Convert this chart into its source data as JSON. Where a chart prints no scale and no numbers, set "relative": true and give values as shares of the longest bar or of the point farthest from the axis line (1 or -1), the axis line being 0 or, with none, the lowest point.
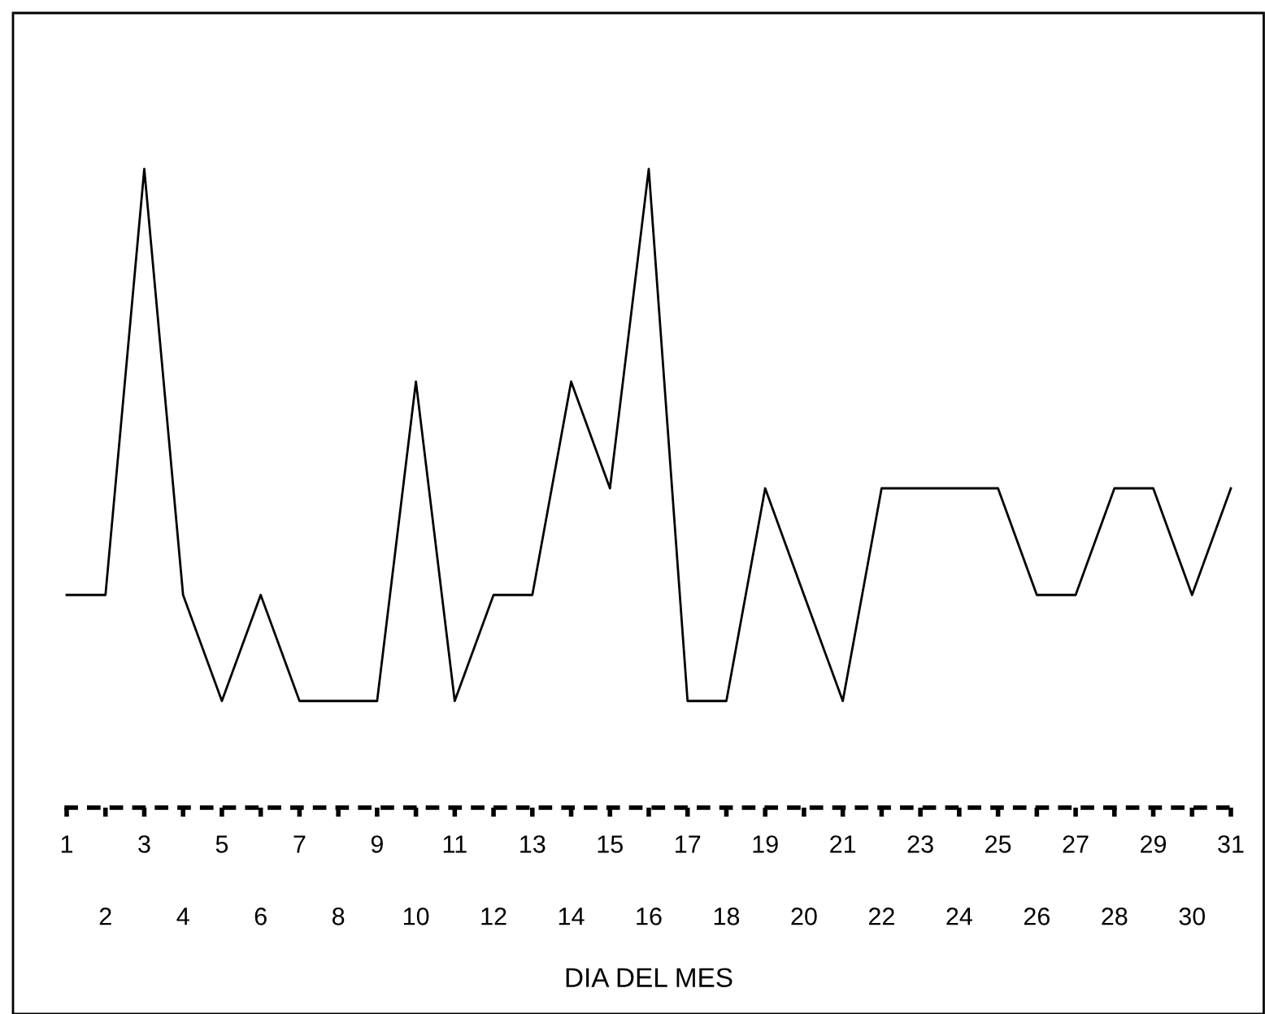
{
  "chart_data": {
    "type": "line",
    "xlabel": "DIA DEL MES",
    "relative": true,
    "categories": [
      "1",
      "2",
      "3",
      "4",
      "5",
      "6",
      "7",
      "8",
      "9",
      "10",
      "11",
      "12",
      "13",
      "14",
      "15",
      "16",
      "17",
      "18",
      "19",
      "20",
      "21",
      "22",
      "23",
      "24",
      "25",
      "26",
      "27",
      "28",
      "29",
      "30",
      "31"
    ],
    "series": [
      {
        "color": "#000000",
        "values": [
          0.333,
          0.333,
          1,
          0.333,
          0.167,
          0.333,
          0.167,
          0.167,
          0.167,
          0.667,
          0.167,
          0.333,
          0.333,
          0.667,
          0.5,
          1,
          0.167,
          0.167,
          0.5,
          0.333,
          0.167,
          0.5,
          0.5,
          0.5,
          0.5,
          0.333,
          0.333,
          0.5,
          0.5,
          0.333,
          0.5
        ]
      }
    ],
    "grid": false,
    "marker": "none",
    "line_style": "solid"
  }
}
